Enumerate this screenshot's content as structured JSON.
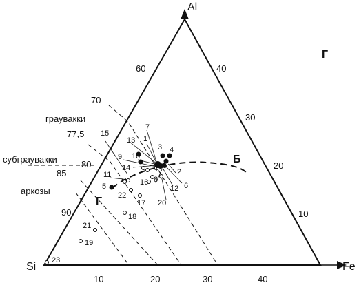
{
  "diagram": {
    "vertices": {
      "top": "Al",
      "left": "Si",
      "right": "Fe"
    },
    "ticks": {
      "bottom": [
        "10",
        "20",
        "30",
        "40"
      ],
      "left": [
        "60",
        "70",
        "77,5",
        "80",
        "85",
        "90"
      ],
      "right": [
        "40",
        "30",
        "20",
        "10"
      ]
    },
    "fields": {
      "graywacke": "граувакки",
      "subgraywacke": "субграувакки",
      "arkose": "аркозы"
    },
    "trend_labels": {
      "b": "Б",
      "g_top": "Г",
      "g_left": "Г"
    },
    "points": [
      {
        "n": "1",
        "filled": true
      },
      {
        "n": "2",
        "filled": true
      },
      {
        "n": "3",
        "filled": true
      },
      {
        "n": "4",
        "filled": true
      },
      {
        "n": "5",
        "filled": true
      },
      {
        "n": "6",
        "filled": true
      },
      {
        "n": "7",
        "filled": true
      },
      {
        "n": "8",
        "filled": true
      },
      {
        "n": "9",
        "filled": true
      },
      {
        "n": "10",
        "filled": true
      },
      {
        "n": "11",
        "filled": false
      },
      {
        "n": "12",
        "filled": false
      },
      {
        "n": "13",
        "filled": false
      },
      {
        "n": "14",
        "filled": false
      },
      {
        "n": "15",
        "filled": false
      },
      {
        "n": "16",
        "filled": false
      },
      {
        "n": "17",
        "filled": false
      },
      {
        "n": "18",
        "filled": false
      },
      {
        "n": "19",
        "filled": false
      },
      {
        "n": "20",
        "filled": false
      },
      {
        "n": "21",
        "filled": false
      },
      {
        "n": "22",
        "filled": false
      },
      {
        "n": "23",
        "filled": false
      }
    ]
  }
}
